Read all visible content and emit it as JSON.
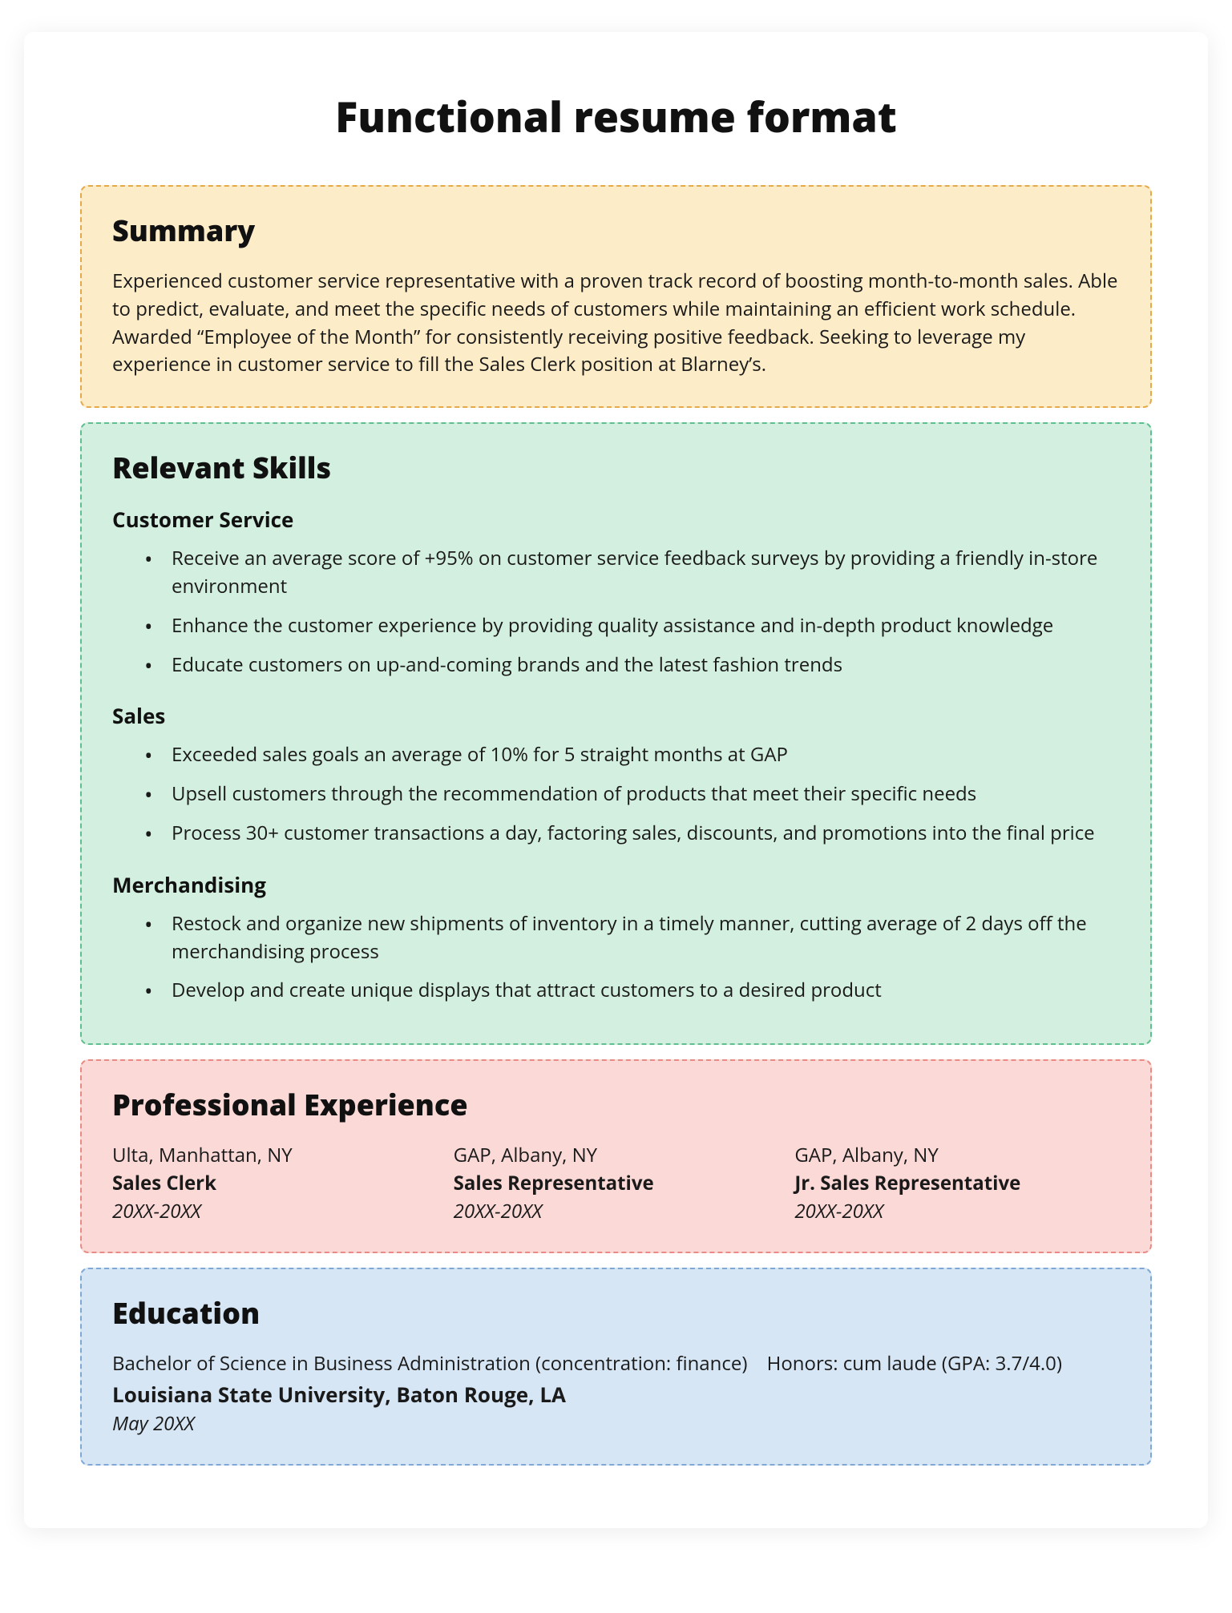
{
  "title": "Functional resume format",
  "colors": {
    "summary_bg": "#fdecc8",
    "summary_border": "#e6a94a",
    "skills_bg": "#d3efdf",
    "skills_border": "#5fbf8e",
    "experience_bg": "#fbd9d6",
    "experience_border": "#e88b85",
    "education_bg": "#d6e6f5",
    "education_border": "#7fa9d4",
    "page_bg": "#ffffff",
    "text": "#1a1a1a"
  },
  "summary": {
    "heading": "Summary",
    "text": "Experienced customer service representative with a proven track record of boosting month-to-month sales. Able to predict, evaluate, and meet the specific needs of customers while maintaining an efficient work schedule. Awarded “Employee of the Month” for consistently receiving positive feedback. Seeking to leverage my experience in customer service to fill the Sales Clerk position at Blarney’s."
  },
  "skills": {
    "heading": "Relevant Skills",
    "groups": [
      {
        "title": "Customer Service",
        "items": [
          "Receive an average score of +95% on customer service feedback surveys by providing a friendly in-store environment",
          "Enhance the customer experience by providing quality assistance and in-depth product knowledge",
          "Educate customers on up-and-coming brands and the latest fashion trends"
        ]
      },
      {
        "title": "Sales",
        "items": [
          "Exceeded sales goals an average of 10% for 5 straight months at GAP",
          "Upsell customers through the recommendation of products that meet their specific needs",
          "Process 30+ customer transactions a day, factoring sales, discounts, and promotions into the final price"
        ]
      },
      {
        "title": "Merchandising",
        "items": [
          "Restock and organize new shipments of inventory in a timely manner, cutting average of 2 days off the merchandising process",
          "Develop and create unique displays that attract customers to a desired product"
        ]
      }
    ]
  },
  "experience": {
    "heading": "Professional Experience",
    "items": [
      {
        "company": "Ulta, Manhattan, NY",
        "role": "Sales Clerk",
        "dates": "20XX-20XX"
      },
      {
        "company": "GAP, Albany, NY",
        "role": "Sales Representative",
        "dates": "20XX-20XX"
      },
      {
        "company": "GAP, Albany, NY",
        "role": "Jr. Sales Representative",
        "dates": "20XX-20XX"
      }
    ]
  },
  "education": {
    "heading": "Education",
    "degree": "Bachelor of Science in Business Administration (concentration: finance)",
    "honors": "Honors: cum laude (GPA: 3.7/4.0)",
    "school": "Louisiana State University,  Baton Rouge, LA",
    "date": "May 20XX"
  }
}
